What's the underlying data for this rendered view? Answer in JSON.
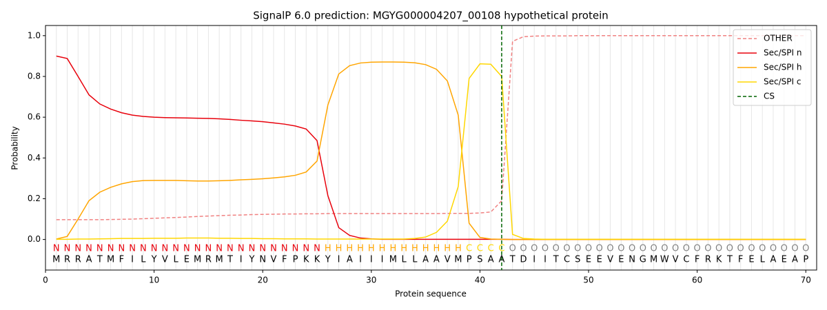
{
  "chart_data": {
    "type": "line",
    "title": "SignalP 6.0 prediction: MGYG000004207_00108 hypothetical protein",
    "x_label": "Protein sequence",
    "y_label": "Probability",
    "x": [
      1,
      2,
      3,
      4,
      5,
      6,
      7,
      8,
      9,
      10,
      11,
      12,
      13,
      14,
      15,
      16,
      17,
      18,
      19,
      20,
      21,
      22,
      23,
      24,
      25,
      26,
      27,
      28,
      29,
      30,
      31,
      32,
      33,
      34,
      35,
      36,
      37,
      38,
      39,
      40,
      41,
      42,
      43,
      44,
      45,
      46,
      47,
      48,
      49,
      50,
      51,
      52,
      53,
      54,
      55,
      56,
      57,
      58,
      59,
      60,
      61,
      62,
      63,
      64,
      65,
      66,
      67,
      68,
      69,
      70
    ],
    "sequence": [
      "M",
      "R",
      "R",
      "A",
      "T",
      "M",
      "F",
      "I",
      "L",
      "Y",
      "V",
      "L",
      "E",
      "M",
      "R",
      "M",
      "T",
      "I",
      "Y",
      "N",
      "V",
      "F",
      "P",
      "K",
      "K",
      "Y",
      "I",
      "A",
      "I",
      "I",
      "I",
      "M",
      "L",
      "L",
      "A",
      "A",
      "V",
      "M",
      "P",
      "S",
      "A",
      "A",
      "T",
      "D",
      "I",
      "I",
      "T",
      "C",
      "S",
      "E",
      "E",
      "V",
      "E",
      "N",
      "G",
      "M",
      "W",
      "V",
      "C",
      "F",
      "R",
      "K",
      "T",
      "F",
      "E",
      "L",
      "A",
      "E",
      "A",
      "P"
    ],
    "labels": [
      "N",
      "N",
      "N",
      "N",
      "N",
      "N",
      "N",
      "N",
      "N",
      "N",
      "N",
      "N",
      "N",
      "N",
      "N",
      "N",
      "N",
      "N",
      "N",
      "N",
      "N",
      "N",
      "N",
      "N",
      "N",
      "H",
      "H",
      "H",
      "H",
      "H",
      "H",
      "H",
      "H",
      "H",
      "H",
      "H",
      "H",
      "H",
      "C",
      "C",
      "C",
      "C",
      "O",
      "O",
      "O",
      "O",
      "O",
      "O",
      "O",
      "O",
      "O",
      "O",
      "O",
      "O",
      "O",
      "O",
      "O",
      "O",
      "O",
      "O",
      "O",
      "O",
      "O",
      "O",
      "O",
      "O",
      "O",
      "O",
      "O",
      "O"
    ],
    "label_colors": {
      "N": "#e8000b",
      "H": "#ffa500",
      "C": "#ffd700",
      "O": "#808080"
    },
    "series": [
      {
        "name": "OTHER",
        "color": "#f08080",
        "dash": true,
        "values": [
          0.097,
          0.097,
          0.097,
          0.097,
          0.097,
          0.098,
          0.099,
          0.1,
          0.102,
          0.104,
          0.106,
          0.108,
          0.11,
          0.113,
          0.115,
          0.117,
          0.119,
          0.12,
          0.122,
          0.123,
          0.124,
          0.125,
          0.125,
          0.126,
          0.126,
          0.127,
          0.127,
          0.127,
          0.127,
          0.127,
          0.127,
          0.127,
          0.127,
          0.127,
          0.127,
          0.127,
          0.128,
          0.128,
          0.128,
          0.13,
          0.135,
          0.19,
          0.972,
          0.995,
          0.998,
          0.999,
          0.999,
          0.999,
          1.0,
          1.0,
          1.0,
          1.0,
          1.0,
          1.0,
          1.0,
          1.0,
          1.0,
          1.0,
          1.0,
          1.0,
          1.0,
          1.0,
          1.0,
          1.0,
          1.0,
          1.0,
          1.0,
          1.0,
          1.0,
          1.0
        ]
      },
      {
        "name": "Sec/SPI n",
        "color": "#e8000b",
        "values": [
          0.9,
          0.888,
          0.8,
          0.71,
          0.665,
          0.64,
          0.622,
          0.61,
          0.604,
          0.6,
          0.598,
          0.597,
          0.596,
          0.595,
          0.594,
          0.592,
          0.589,
          0.585,
          0.582,
          0.578,
          0.572,
          0.566,
          0.557,
          0.542,
          0.485,
          0.215,
          0.058,
          0.02,
          0.007,
          0.003,
          0.001,
          0.001,
          0.001,
          0.001,
          0.001,
          0.001,
          0.001,
          0.001,
          0.001,
          0.001,
          0.001,
          0.001,
          0,
          0,
          0,
          0,
          0,
          0,
          0,
          0,
          0,
          0,
          0,
          0,
          0,
          0,
          0,
          0,
          0,
          0,
          0,
          0,
          0,
          0,
          0,
          0,
          0,
          0,
          0,
          0
        ]
      },
      {
        "name": "Sec/SPI h",
        "color": "#ffa500",
        "values": [
          0.002,
          0.015,
          0.1,
          0.19,
          0.232,
          0.256,
          0.273,
          0.284,
          0.289,
          0.29,
          0.29,
          0.29,
          0.288,
          0.287,
          0.287,
          0.288,
          0.29,
          0.293,
          0.295,
          0.298,
          0.302,
          0.307,
          0.315,
          0.331,
          0.385,
          0.66,
          0.812,
          0.853,
          0.866,
          0.87,
          0.871,
          0.871,
          0.87,
          0.867,
          0.858,
          0.835,
          0.778,
          0.61,
          0.08,
          0.01,
          0.002,
          0.001,
          0,
          0,
          0,
          0,
          0,
          0,
          0,
          0,
          0,
          0,
          0,
          0,
          0,
          0,
          0,
          0,
          0,
          0,
          0,
          0,
          0,
          0,
          0,
          0,
          0,
          0,
          0,
          0
        ]
      },
      {
        "name": "Sec/SPI c",
        "color": "#ffd700",
        "values": [
          0.001,
          0.001,
          0.002,
          0.002,
          0.003,
          0.004,
          0.005,
          0.005,
          0.005,
          0.006,
          0.006,
          0.006,
          0.007,
          0.007,
          0.007,
          0.006,
          0.006,
          0.005,
          0.005,
          0.004,
          0.004,
          0.003,
          0.003,
          0.003,
          0.002,
          0.002,
          0.002,
          0.002,
          0.002,
          0.002,
          0.002,
          0.002,
          0.002,
          0.005,
          0.012,
          0.035,
          0.09,
          0.26,
          0.79,
          0.862,
          0.86,
          0.8,
          0.025,
          0.005,
          0.002,
          0.001,
          0.001,
          0.001,
          0.001,
          0.001,
          0.001,
          0.001,
          0.001,
          0.001,
          0.001,
          0.001,
          0.001,
          0.001,
          0.001,
          0.001,
          0.001,
          0.001,
          0.001,
          0.001,
          0.001,
          0.001,
          0.001,
          0.001,
          0.001,
          0.001
        ]
      }
    ],
    "cs": {
      "name": "CS",
      "x": 42,
      "color": "#006400"
    },
    "xlim": [
      0,
      71
    ],
    "ylim": [
      -0.15,
      1.05
    ],
    "xticks": [
      0,
      10,
      20,
      30,
      40,
      50,
      60,
      70
    ],
    "yticks": [
      {
        "value": 0,
        "label": "0.0"
      },
      0.2,
      0.4,
      0.6,
      0.8,
      {
        "value": 1,
        "label": "1.0"
      }
    ],
    "legend": "upper right"
  }
}
